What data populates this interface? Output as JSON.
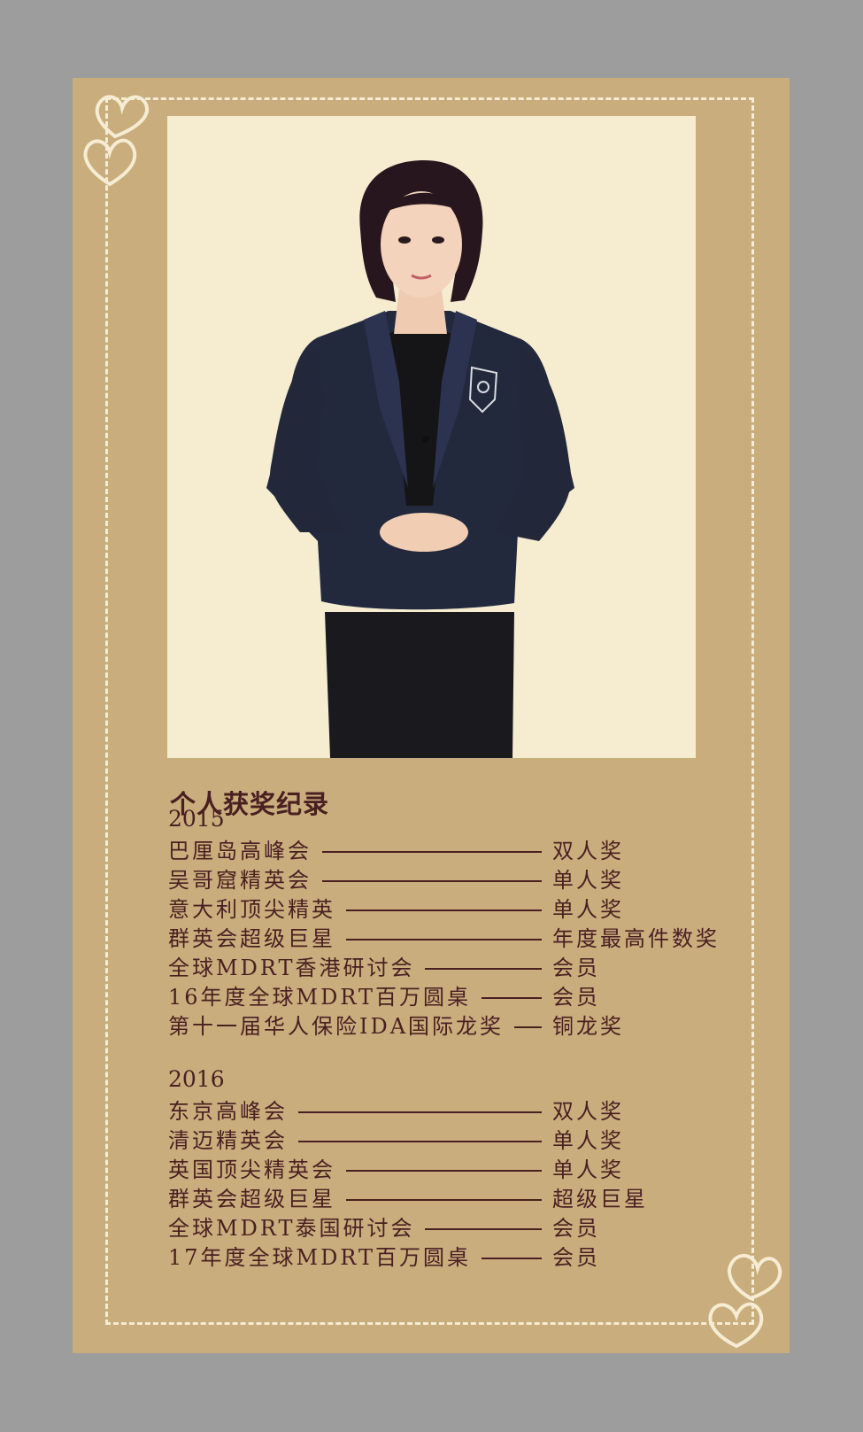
{
  "heading": "个人获奖纪录",
  "sections": [
    {
      "year": "2015",
      "items": [
        {
          "event": "巴厘岛高峰会",
          "award": "双人奖"
        },
        {
          "event": "吴哥窟精英会",
          "award": "单人奖"
        },
        {
          "event": "意大利顶尖精英",
          "award": "单人奖"
        },
        {
          "event": "群英会超级巨星",
          "award": "年度最高件数奖"
        },
        {
          "event": "全球MDRT香港研讨会",
          "award": "会员"
        },
        {
          "event": "16年度全球MDRT百万圆桌",
          "award": "会员"
        },
        {
          "event": "第十一届华人保险IDA国际龙奖",
          "award": "铜龙奖"
        }
      ]
    },
    {
      "year": "2016",
      "items": [
        {
          "event": "东京高峰会",
          "award": "双人奖"
        },
        {
          "event": "清迈精英会",
          "award": "单人奖"
        },
        {
          "event": "英国顶尖精英会",
          "award": "单人奖"
        },
        {
          "event": "群英会超级巨星",
          "award": "超级巨星"
        },
        {
          "event": "全球MDRT泰国研讨会",
          "award": "会员"
        },
        {
          "event": "17年度全球MDRT百万圆桌",
          "award": "会员"
        }
      ]
    }
  ],
  "colors": {
    "page_bg": "#9d9d9d",
    "card_bg": "#c9ad7c",
    "photo_bg": "#f6ecd0",
    "text": "#4a1f22",
    "dash": "#f5ecd3"
  },
  "icons": {
    "corner_top_left": "double-heart-icon",
    "corner_bottom_right": "double-heart-icon",
    "badge": "shield-badge-icon"
  }
}
